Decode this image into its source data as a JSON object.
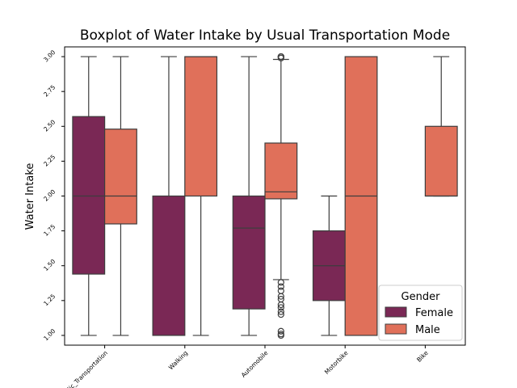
{
  "chart_data": {
    "type": "boxplot",
    "title": "Boxplot of Water Intake by Usual Transportation Mode",
    "xlabel": "",
    "ylabel": "Water Intake",
    "ylim": [
      0.93,
      3.07
    ],
    "yticks": [
      1.0,
      1.25,
      1.5,
      1.75,
      2.0,
      2.25,
      2.5,
      2.75,
      3.0
    ],
    "ytick_labels": [
      "1.00",
      "1.25",
      "1.50",
      "1.75",
      "2.00",
      "2.25",
      "2.50",
      "2.75",
      "3.00"
    ],
    "categories": [
      "Public_Transportation",
      "Walking",
      "Automobile",
      "Motorbike",
      "Bike"
    ],
    "grid": false,
    "legend": {
      "title": "Gender",
      "position": "lower-right"
    },
    "series": [
      {
        "name": "Female",
        "color": "#7a2855",
        "boxes": [
          {
            "category": "Public_Transportation",
            "whisker_low": 1.0,
            "q1": 1.44,
            "median": 2.0,
            "q3": 2.57,
            "whisker_high": 3.0,
            "outliers": []
          },
          {
            "category": "Walking",
            "whisker_low": 1.0,
            "q1": 1.0,
            "median": 1.0,
            "q3": 2.0,
            "whisker_high": 3.0,
            "outliers": []
          },
          {
            "category": "Automobile",
            "whisker_low": 1.0,
            "q1": 1.19,
            "median": 1.77,
            "q3": 2.0,
            "whisker_high": 3.0,
            "outliers": []
          },
          {
            "category": "Motorbike",
            "whisker_low": 1.0,
            "q1": 1.25,
            "median": 1.5,
            "q3": 1.75,
            "whisker_high": 2.0,
            "outliers": []
          }
        ]
      },
      {
        "name": "Male",
        "color": "#e0705a",
        "boxes": [
          {
            "category": "Public_Transportation",
            "whisker_low": 1.0,
            "q1": 1.8,
            "median": 2.0,
            "q3": 2.48,
            "whisker_high": 3.0,
            "outliers": []
          },
          {
            "category": "Walking",
            "whisker_low": 1.0,
            "q1": 2.0,
            "median": 3.0,
            "q3": 3.0,
            "whisker_high": 3.0,
            "outliers": []
          },
          {
            "category": "Automobile",
            "whisker_low": 1.4,
            "q1": 1.98,
            "median": 2.03,
            "q3": 2.38,
            "whisker_high": 2.98,
            "outliers": [
              1.0,
              1.01,
              1.03,
              1.15,
              1.17,
              1.2,
              1.22,
              1.26,
              1.28,
              1.32,
              1.35,
              1.38,
              2.99,
              3.0,
              3.0,
              3.0
            ]
          },
          {
            "category": "Motorbike",
            "whisker_low": 1.0,
            "q1": 1.0,
            "median": 2.0,
            "q3": 3.0,
            "whisker_high": 3.0,
            "outliers": []
          },
          {
            "category": "Bike",
            "whisker_low": 2.0,
            "q1": 2.0,
            "median": 2.0,
            "q3": 2.5,
            "whisker_high": 3.0,
            "outliers": []
          }
        ]
      }
    ]
  }
}
